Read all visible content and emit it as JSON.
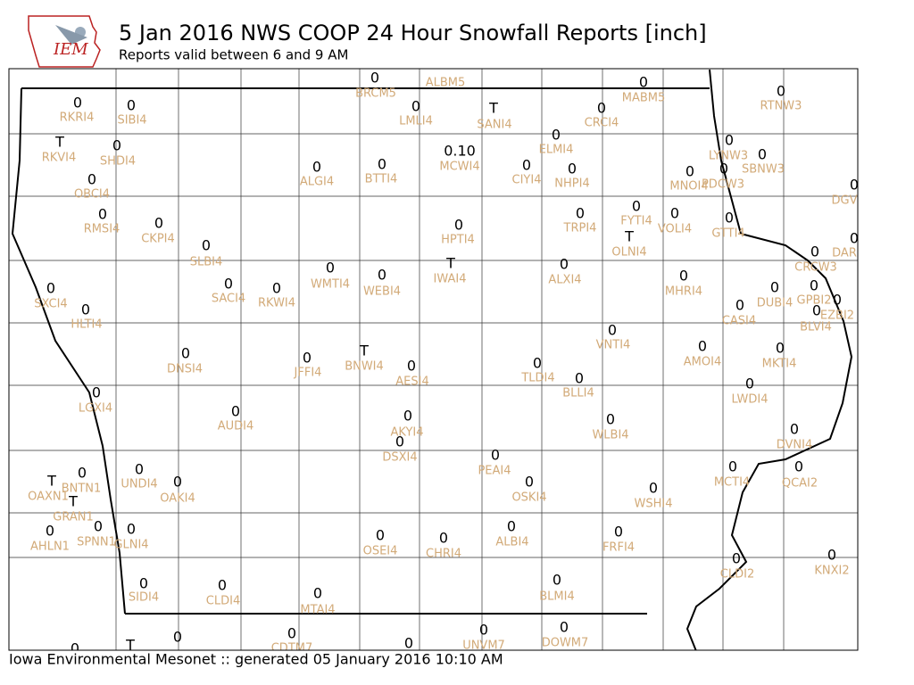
{
  "header": {
    "logo": "IEM",
    "title": "5 Jan 2016 NWS COOP 24 Hour Snowfall Reports [inch]",
    "subtitle": "Reports valid between 6 and 9 AM"
  },
  "footer": "Iowa Environmental Mesonet :: generated 05 January 2016 10:10 AM",
  "stations": [
    {
      "id": "BRCM5",
      "value": "0"
    },
    {
      "id": "ALBM5"
    },
    {
      "id": "MABM5",
      "value": "0"
    },
    {
      "id": "RKRI4",
      "value": "0"
    },
    {
      "id": "SIBI4",
      "value": "0"
    },
    {
      "id": "LMLI4",
      "value": "0"
    },
    {
      "id": "SANI4",
      "value": "T"
    },
    {
      "id": "CRCI4",
      "value": "0"
    },
    {
      "id": "RTNW3",
      "value": "0"
    },
    {
      "id": "RKVI4",
      "value": "T"
    },
    {
      "id": "SHDI4",
      "value": "0"
    },
    {
      "id": "ELMI4",
      "value": "0"
    },
    {
      "id": "MCWI4",
      "value": "0.10"
    },
    {
      "id": "LYNW3",
      "value": "0"
    },
    {
      "id": "SBNW3",
      "value": "0"
    },
    {
      "id": "ALGI4",
      "value": "0"
    },
    {
      "id": "BTTI4",
      "value": "0"
    },
    {
      "id": "CIYI4",
      "value": "0"
    },
    {
      "id": "NHPI4",
      "value": "0"
    },
    {
      "id": "MNOI4",
      "value": "0"
    },
    {
      "id": "PDCW3",
      "value": "0"
    },
    {
      "id": "OBCI4",
      "value": "0"
    },
    {
      "id": "DGV",
      "value": "0"
    },
    {
      "id": "RMSI4",
      "value": "0"
    },
    {
      "id": "CKPI4",
      "value": "0"
    },
    {
      "id": "HPTI4",
      "value": "0"
    },
    {
      "id": "TRPI4",
      "value": "0"
    },
    {
      "id": "FYTI4",
      "value": "0"
    },
    {
      "id": "VOLI4",
      "value": "0"
    },
    {
      "id": "GTTI4",
      "value": "0"
    },
    {
      "id": "OLNI4",
      "value": "T"
    },
    {
      "id": "DAR",
      "value": "0"
    },
    {
      "id": "SLBI4",
      "value": "0"
    },
    {
      "id": "CRCW3",
      "value": "0"
    },
    {
      "id": "IWAI4",
      "value": "T"
    },
    {
      "id": "ALXI4",
      "value": "0"
    },
    {
      "id": "WMTI4",
      "value": "0"
    },
    {
      "id": "WEBI4",
      "value": "0"
    },
    {
      "id": "MHRI4",
      "value": "0"
    },
    {
      "id": "SACI4",
      "value": "0"
    },
    {
      "id": "RKWI4",
      "value": "0"
    },
    {
      "id": "SXCI4",
      "value": "0"
    },
    {
      "id": "DUBI4",
      "value": "0"
    },
    {
      "id": "GPBI2",
      "value": "0"
    },
    {
      "id": "EZBI2",
      "value": "0"
    },
    {
      "id": "BLVI4",
      "value": "0"
    },
    {
      "id": "HLTI4",
      "value": "0"
    },
    {
      "id": "CASI4",
      "value": "0"
    },
    {
      "id": "VNTI4",
      "value": "0"
    },
    {
      "id": "AMOI4",
      "value": "0"
    },
    {
      "id": "MKTI4",
      "value": "0"
    },
    {
      "id": "DNSI4",
      "value": "0"
    },
    {
      "id": "JFFI4",
      "value": "0"
    },
    {
      "id": "BNWI4",
      "value": "T"
    },
    {
      "id": "AESI4",
      "value": "0"
    },
    {
      "id": "TLDI4",
      "value": "0"
    },
    {
      "id": "BLLI4",
      "value": "0"
    },
    {
      "id": "LWDI4",
      "value": "0"
    },
    {
      "id": "LGXI4",
      "value": "0"
    },
    {
      "id": "AUDI4",
      "value": "0"
    },
    {
      "id": "AKYI4",
      "value": "0"
    },
    {
      "id": "WLBI4",
      "value": "0"
    },
    {
      "id": "DVNI4",
      "value": "0"
    },
    {
      "id": "DSXI4",
      "value": "0"
    },
    {
      "id": "PEAI4",
      "value": "0"
    },
    {
      "id": "UNDI4",
      "value": "0"
    },
    {
      "id": "MCTI4",
      "value": "0"
    },
    {
      "id": "QCAI2",
      "value": "0"
    },
    {
      "id": "BNTN1",
      "value": "0"
    },
    {
      "id": "OAXN1",
      "value": "T"
    },
    {
      "id": "OAKI4",
      "value": "0"
    },
    {
      "id": "OSKI4",
      "value": "0"
    },
    {
      "id": "WSHI4",
      "value": "0"
    },
    {
      "id": "GRAN1",
      "value": "T"
    },
    {
      "id": "SPNN1",
      "value": "0"
    },
    {
      "id": "GLNI4",
      "value": "0"
    },
    {
      "id": "AHLN1",
      "value": "0"
    },
    {
      "id": "ALBI4",
      "value": "0"
    },
    {
      "id": "OSEI4",
      "value": "0"
    },
    {
      "id": "CHRI4",
      "value": "0"
    },
    {
      "id": "FRFI4",
      "value": "0"
    },
    {
      "id": "KNXI2",
      "value": "0"
    },
    {
      "id": "CLDI2",
      "value": "0"
    },
    {
      "id": "SIDI4",
      "value": "0"
    },
    {
      "id": "CLDI4",
      "value": "0"
    },
    {
      "id": "BLMI4",
      "value": "0"
    },
    {
      "id": "MTAI4",
      "value": "0"
    },
    {
      "value": "0"
    },
    {
      "value": "T"
    },
    {
      "value": "0"
    },
    {
      "id": "CDTM7",
      "value": "0"
    },
    {
      "value": "0"
    },
    {
      "id": "UNVM7",
      "value": "0"
    },
    {
      "id": "DOWM7",
      "value": "0"
    }
  ]
}
